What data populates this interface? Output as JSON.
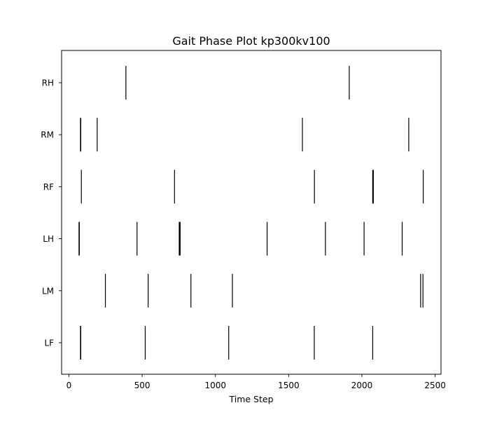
{
  "chart_data": {
    "type": "event-plot",
    "title": "Gait Phase Plot kp300kv100",
    "xlabel": "Time Step",
    "ylabel": "",
    "xlim": [
      -50,
      2540
    ],
    "xticks": [
      0,
      500,
      1000,
      1500,
      2000,
      2500
    ],
    "legs": [
      "LF",
      "LM",
      "LH",
      "RF",
      "RM",
      "RH"
    ],
    "grid": false,
    "events": {
      "LF": [
        {
          "start": 76,
          "end": 84
        },
        {
          "start": 518,
          "end": 520
        },
        {
          "start": 1088,
          "end": 1090
        },
        {
          "start": 1672,
          "end": 1677
        },
        {
          "start": 2071,
          "end": 2076
        }
      ],
      "LM": [
        {
          "start": 246,
          "end": 251
        },
        {
          "start": 538,
          "end": 543
        },
        {
          "start": 830,
          "end": 832
        },
        {
          "start": 1113,
          "end": 1115
        },
        {
          "start": 2398,
          "end": 2400
        },
        {
          "start": 2414,
          "end": 2416
        }
      ],
      "LH": [
        {
          "start": 66,
          "end": 74
        },
        {
          "start": 462,
          "end": 464
        },
        {
          "start": 750,
          "end": 762
        },
        {
          "start": 1350,
          "end": 1355
        },
        {
          "start": 1748,
          "end": 1750
        },
        {
          "start": 2012,
          "end": 2014
        },
        {
          "start": 2272,
          "end": 2274
        }
      ],
      "RF": [
        {
          "start": 82,
          "end": 84
        },
        {
          "start": 718,
          "end": 720
        },
        {
          "start": 1673,
          "end": 1678
        },
        {
          "start": 2071,
          "end": 2081
        },
        {
          "start": 2416,
          "end": 2421
        }
      ],
      "RM": [
        {
          "start": 76,
          "end": 84
        },
        {
          "start": 190,
          "end": 195
        },
        {
          "start": 1591,
          "end": 1596
        },
        {
          "start": 2317,
          "end": 2322
        }
      ],
      "RH": [
        {
          "start": 386,
          "end": 391
        },
        {
          "start": 1911,
          "end": 1913
        }
      ]
    }
  }
}
